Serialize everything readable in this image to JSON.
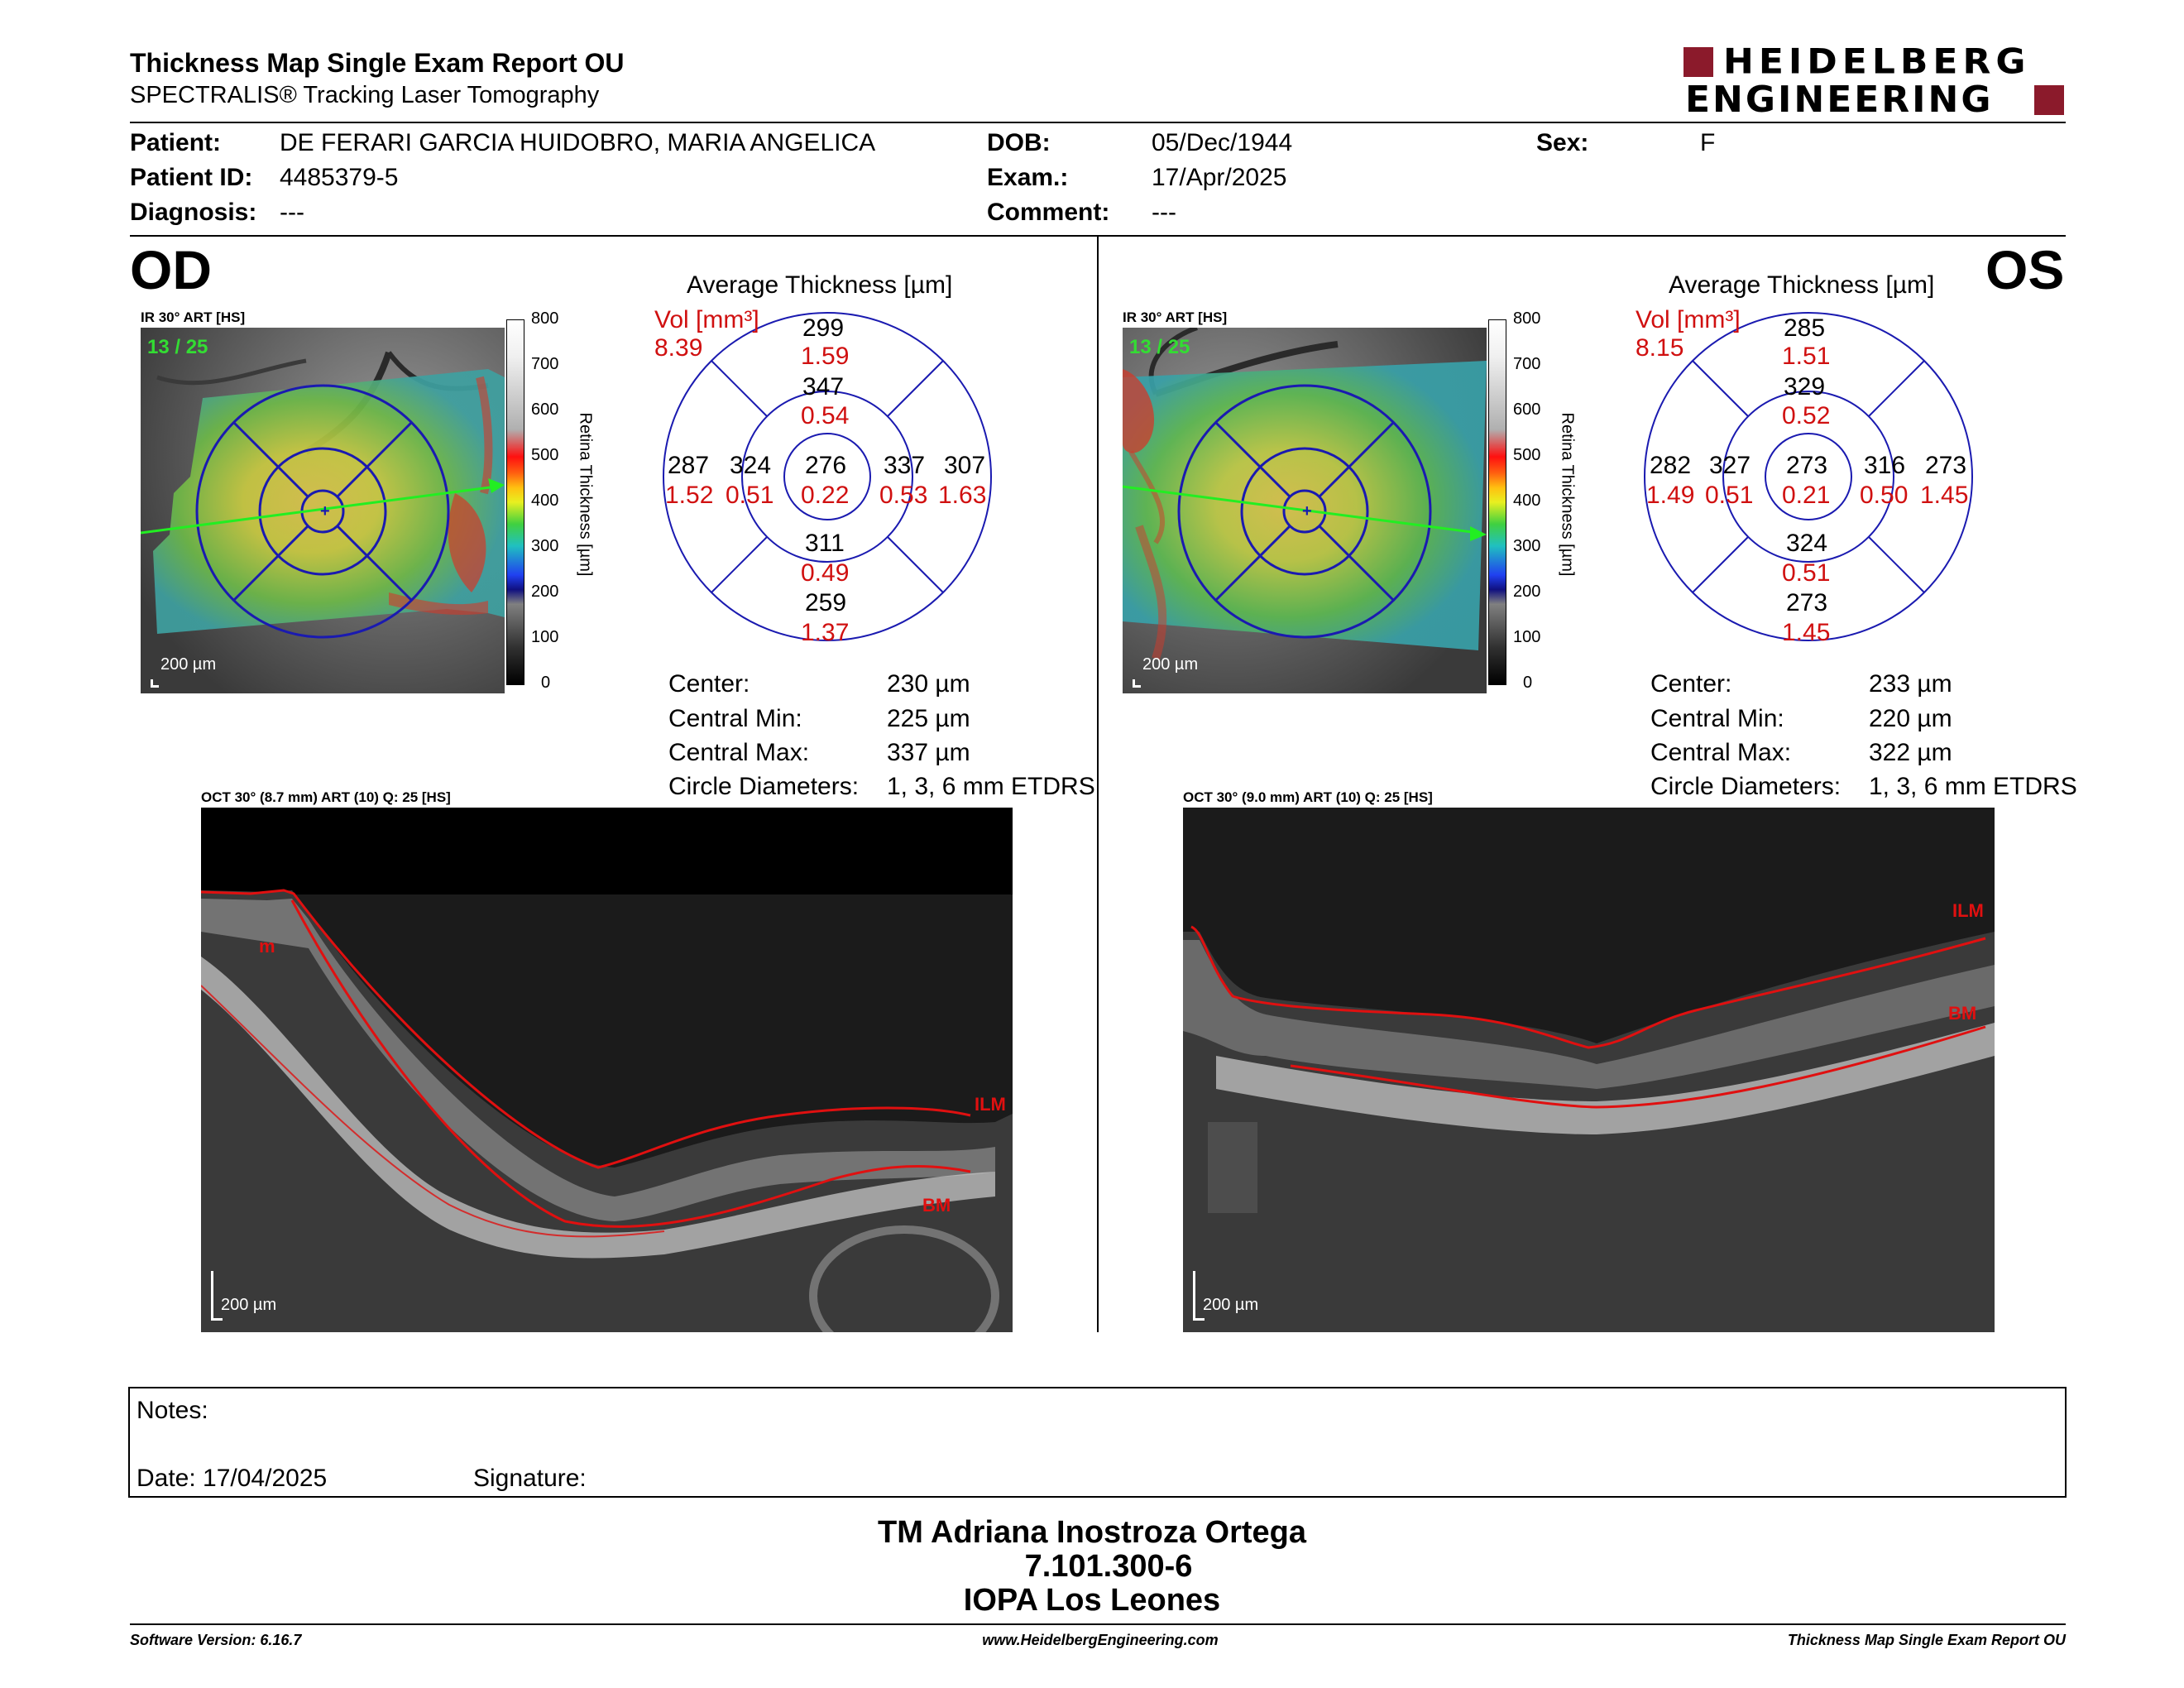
{
  "header": {
    "title": "Thickness Map Single Exam Report OU",
    "subtitle": "SPECTRALIS® Tracking Laser Tomography",
    "brand_line1": "HEIDELBERG",
    "brand_line2": "ENGINEERING",
    "brand_color": "#8b1a2b"
  },
  "patient": {
    "patient_label": "Patient:",
    "patient_value": "DE FERARI GARCIA HUIDOBRO, MARIA ANGELICA",
    "id_label": "Patient ID:",
    "id_value": "4485379-5",
    "diagnosis_label": "Diagnosis:",
    "diagnosis_value": "---",
    "dob_label": "DOB:",
    "dob_value": "05/Dec/1944",
    "exam_label": "Exam.:",
    "exam_value": "17/Apr/2025",
    "comment_label": "Comment:",
    "comment_value": "---",
    "sex_label": "Sex:",
    "sex_value": "F"
  },
  "od": {
    "eye": "OD",
    "ir_caption": "IR 30° ART [HS]",
    "frames": "13 / 25",
    "scale_bar": "200 µm",
    "avg_title": "Average Thickness [µm]",
    "vol_label": "Vol [mm³]",
    "vol_total": "8.39",
    "sectors": {
      "outer_superior": {
        "thk": "299",
        "vol": "1.59"
      },
      "inner_superior": {
        "thk": "347",
        "vol": "0.54"
      },
      "outer_temporal_left": {
        "thk": "287",
        "vol": "1.52"
      },
      "inner_left": {
        "thk": "324",
        "vol": "0.51"
      },
      "center": {
        "thk": "276",
        "vol": "0.22"
      },
      "inner_right": {
        "thk": "337",
        "vol": "0.53"
      },
      "outer_right": {
        "thk": "307",
        "vol": "1.63"
      },
      "inner_inferior": {
        "thk": "311",
        "vol": "0.49"
      },
      "outer_inferior": {
        "thk": "259",
        "vol": "1.37"
      }
    },
    "stats": [
      {
        "label": "Center:",
        "value": "230 µm"
      },
      {
        "label": "Central Min:",
        "value": "225 µm"
      },
      {
        "label": "Central Max:",
        "value": "337 µm"
      },
      {
        "label": "Circle Diameters:",
        "value": "1, 3, 6 mm ETDRS"
      }
    ],
    "oct_caption": "OCT 30° (8.7 mm) ART (10) Q: 25 [HS]",
    "oct_scale": "200 µm",
    "ilm": "ILM",
    "bm": "BM",
    "mark_m": "m"
  },
  "os": {
    "eye": "OS",
    "ir_caption": "IR 30° ART [HS]",
    "frames": "13 / 25",
    "scale_bar": "200 µm",
    "avg_title": "Average Thickness [µm]",
    "vol_label": "Vol [mm³]",
    "vol_total": "8.15",
    "sectors": {
      "outer_superior": {
        "thk": "285",
        "vol": "1.51"
      },
      "inner_superior": {
        "thk": "329",
        "vol": "0.52"
      },
      "outer_temporal_left": {
        "thk": "282",
        "vol": "1.49"
      },
      "inner_left": {
        "thk": "327",
        "vol": "0.51"
      },
      "center": {
        "thk": "273",
        "vol": "0.21"
      },
      "inner_right": {
        "thk": "316",
        "vol": "0.50"
      },
      "outer_right": {
        "thk": "273",
        "vol": "1.45"
      },
      "inner_inferior": {
        "thk": "324",
        "vol": "0.51"
      },
      "outer_inferior": {
        "thk": "273",
        "vol": "1.45"
      }
    },
    "stats": [
      {
        "label": "Center:",
        "value": "233 µm"
      },
      {
        "label": "Central Min:",
        "value": "220 µm"
      },
      {
        "label": "Central Max:",
        "value": "322 µm"
      },
      {
        "label": "Circle Diameters:",
        "value": "1, 3, 6 mm ETDRS"
      }
    ],
    "oct_caption": "OCT 30° (9.0 mm) ART (10) Q: 25 [HS]",
    "oct_scale": "200 µm",
    "ilm": "ILM",
    "bm": "BM"
  },
  "legend": {
    "axis_title": "Retina Thickness [µm]",
    "ticks": [
      "800",
      "700",
      "600",
      "500",
      "400",
      "300",
      "200",
      "100",
      "0"
    ]
  },
  "notes": {
    "notes_label": "Notes:",
    "date_label": "Date: 17/04/2025",
    "signature_label": "Signature:"
  },
  "signoff": {
    "name": "TM Adriana Inostroza Ortega",
    "rut": "7.101.300-6",
    "clinic": "IOPA Los Leones"
  },
  "footer": {
    "software": "Software Version: 6.16.7",
    "website": "www.HeidelbergEngineering.com",
    "report": "Thickness Map Single Exam Report OU"
  },
  "colors": {
    "red_text": "#d01010",
    "grid_blue": "#1a1ab0",
    "frames_green": "#33dd33",
    "seg_red": "#e01010"
  }
}
